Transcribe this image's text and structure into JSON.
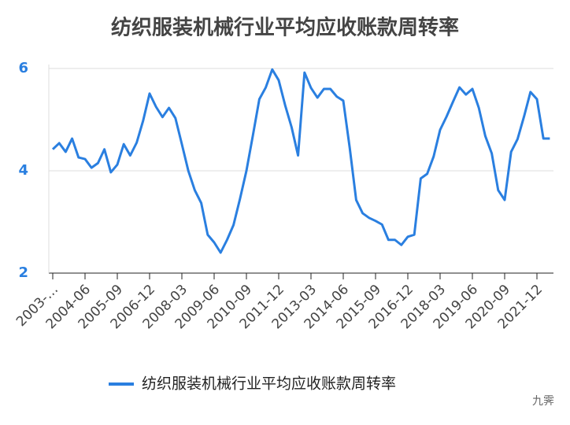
{
  "chart_data": {
    "type": "line",
    "title": "纺织服装机械行业平均应收账款周转率",
    "categories": [
      "2003-…",
      null,
      null,
      null,
      null,
      "2004-06",
      null,
      null,
      null,
      null,
      "2005-09",
      null,
      null,
      null,
      null,
      "2006-12",
      null,
      null,
      null,
      null,
      "2008-03",
      null,
      null,
      null,
      null,
      "2009-06",
      null,
      null,
      null,
      null,
      "2010-09",
      null,
      null,
      null,
      null,
      "2011-12",
      null,
      null,
      null,
      null,
      "2013-03",
      null,
      null,
      null,
      null,
      "2014-06",
      null,
      null,
      null,
      null,
      "2015-09",
      null,
      null,
      null,
      null,
      "2016-12",
      null,
      null,
      null,
      null,
      "2018-03",
      null,
      null,
      null,
      null,
      "2019-06",
      null,
      null,
      null,
      null,
      "2020-09",
      null,
      null,
      null,
      null,
      "2021-12",
      null,
      null
    ],
    "series": [
      {
        "name": "纺织服装机械行业平均应收账款周转率",
        "color": "#2a7fe0",
        "values": [
          4.42,
          4.54,
          4.37,
          4.63,
          4.26,
          4.23,
          4.06,
          4.15,
          4.42,
          3.97,
          4.12,
          4.52,
          4.3,
          4.55,
          4.98,
          5.51,
          5.25,
          5.05,
          5.23,
          5.03,
          4.52,
          4.0,
          3.62,
          3.37,
          2.75,
          2.6,
          2.4,
          2.65,
          2.94,
          3.45,
          4.0,
          4.69,
          5.4,
          5.63,
          5.98,
          5.77,
          5.28,
          4.85,
          4.3,
          5.92,
          5.62,
          5.43,
          5.6,
          5.6,
          5.45,
          5.37,
          4.45,
          3.43,
          3.17,
          3.08,
          3.02,
          2.95,
          2.65,
          2.65,
          2.55,
          2.71,
          2.75,
          3.85,
          3.94,
          4.28,
          4.8,
          5.06,
          5.35,
          5.63,
          5.49,
          5.6,
          5.23,
          4.68,
          4.34,
          3.62,
          3.43,
          4.37,
          4.62,
          5.06,
          5.54,
          5.4,
          4.63,
          4.63
        ]
      }
    ],
    "ylim": [
      2,
      6
    ],
    "yticks": [
      2,
      4,
      6
    ],
    "grid": true,
    "legend": "bottom",
    "watermark": "九霁"
  }
}
